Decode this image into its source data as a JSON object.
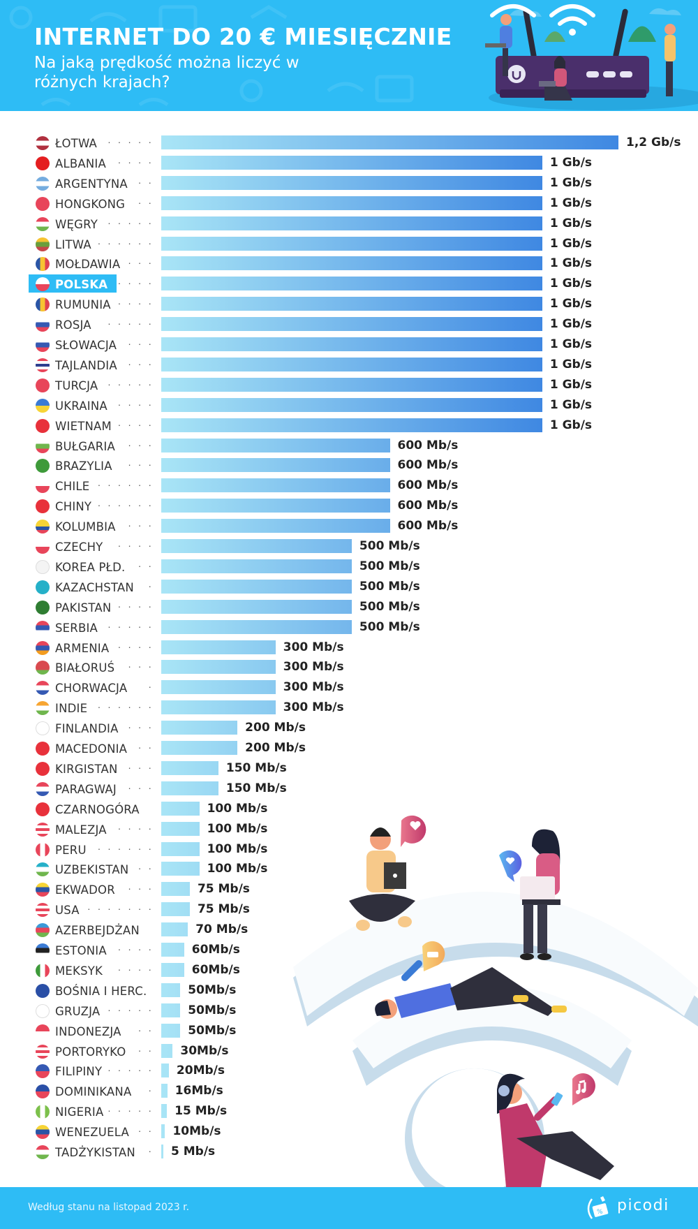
{
  "header": {
    "title": "INTERNET DO 20 € MIESIĘCZNIE",
    "subtitle": "Na jaką prędkość można liczyć w różnych krajach?"
  },
  "footer": {
    "source": "Według stanu na listopad 2023 r.",
    "brand": "picodi"
  },
  "colors": {
    "header_bg": "#2ebcf5",
    "bar_start": "#a9e5f6",
    "bar_end": "#3f88e2",
    "highlight": "#2ebcf5"
  },
  "chart_data": {
    "type": "bar",
    "orientation": "horizontal",
    "title": "INTERNET DO 20 € MIESIĘCZNIE",
    "subtitle": "Na jaką prędkość można liczyć w różnych krajach?",
    "unit": "Mb/s",
    "highlighted": "POLSKA",
    "xlim": [
      0,
      1200
    ],
    "grid": false,
    "rows": [
      {
        "country": "ŁOTWA",
        "dots": "· · · · ·",
        "value": 1200,
        "label": "1,2 Gb/s",
        "flag": [
          "#b0303f",
          "#ffffff",
          "#b0303f"
        ]
      },
      {
        "country": "ALBANIA",
        "dots": "· · · ·",
        "value": 1000,
        "label": "1 Gb/s",
        "flag": [
          "#e41e20"
        ]
      },
      {
        "country": "ARGENTYNA",
        "dots": "· ·",
        "value": 1000,
        "label": "1 Gb/s",
        "flag": [
          "#74acdf",
          "#ffffff",
          "#74acdf"
        ]
      },
      {
        "country": "HONGKONG",
        "dots": "· ·",
        "value": 1000,
        "label": "1 Gb/s",
        "flag": [
          "#e8455a"
        ]
      },
      {
        "country": "WĘGRY",
        "dots": "· · · · ·",
        "value": 1000,
        "label": "1 Gb/s",
        "flag": [
          "#e8455a",
          "#ffffff",
          "#6fb64d"
        ]
      },
      {
        "country": "LITWA",
        "dots": "· · · · · ·",
        "value": 1000,
        "label": "1 Gb/s",
        "flag": [
          "#f7c331",
          "#6a9e3c",
          "#c6464a"
        ]
      },
      {
        "country": "MOŁDAWIA",
        "dots": "· · ·",
        "value": 1000,
        "label": "1 Gb/s",
        "flag": [
          "#2a55a6",
          "#f7c331",
          "#e0424f"
        ],
        "vertical": true
      },
      {
        "country": "POLSKA",
        "dots": "· · · ·",
        "value": 1000,
        "label": "1 Gb/s",
        "flag": [
          "#ffffff",
          "#e8455a"
        ]
      },
      {
        "country": "RUMUNIA",
        "dots": "· · · ·",
        "value": 1000,
        "label": "1 Gb/s",
        "flag": [
          "#2a55a6",
          "#f7c331",
          "#e0424f"
        ],
        "vertical": true
      },
      {
        "country": "ROSJA",
        "dots": "· · · · ·",
        "value": 1000,
        "label": "1 Gb/s",
        "flag": [
          "#ffffff",
          "#3559b3",
          "#e8455a"
        ]
      },
      {
        "country": "SŁOWACJA",
        "dots": "· · ·",
        "value": 1000,
        "label": "1 Gb/s",
        "flag": [
          "#ffffff",
          "#3559b3",
          "#e8455a"
        ]
      },
      {
        "country": "TAJLANDIA",
        "dots": "· · ·",
        "value": 1000,
        "label": "1 Gb/s",
        "flag": [
          "#e8455a",
          "#ffffff",
          "#2e3f8f",
          "#ffffff",
          "#e8455a"
        ]
      },
      {
        "country": "TURCJA",
        "dots": "· · · · ·",
        "value": 1000,
        "label": "1 Gb/s",
        "flag": [
          "#e8455a"
        ]
      },
      {
        "country": "UKRAINA",
        "dots": "· · · ·",
        "value": 1000,
        "label": "1 Gb/s",
        "flag": [
          "#3a7bd5",
          "#f7d436"
        ]
      },
      {
        "country": "WIETNAM",
        "dots": "· · · ·",
        "value": 1000,
        "label": "1 Gb/s",
        "flag": [
          "#e8313b"
        ]
      },
      {
        "country": "BUŁGARIA",
        "dots": "· · ·",
        "value": 600,
        "label": "600 Mb/s",
        "flag": [
          "#ffffff",
          "#6fb64d",
          "#e8455a"
        ]
      },
      {
        "country": "BRAZYLIA",
        "dots": "· · ·",
        "value": 600,
        "label": "600 Mb/s",
        "flag": [
          "#3e9a3a"
        ]
      },
      {
        "country": "CHILE",
        "dots": "· · · · · ·",
        "value": 600,
        "label": "600 Mb/s",
        "flag": [
          "#ffffff",
          "#e8455a"
        ]
      },
      {
        "country": "CHINY",
        "dots": "· · · · · ·",
        "value": 600,
        "label": "600 Mb/s",
        "flag": [
          "#e8313b"
        ]
      },
      {
        "country": "KOLUMBIA",
        "dots": "· · ·",
        "value": 600,
        "label": "600 Mb/s",
        "flag": [
          "#f7d436",
          "#f7d436",
          "#2a55a6",
          "#e8455a"
        ]
      },
      {
        "country": "CZECHY",
        "dots": "· · · ·",
        "value": 500,
        "label": "500 Mb/s",
        "flag": [
          "#ffffff",
          "#e8455a"
        ]
      },
      {
        "country": "KOREA PŁD.",
        "dots": "· ·",
        "value": 500,
        "label": "500 Mb/s",
        "flag": [
          "#f4f4f4"
        ]
      },
      {
        "country": "KAZACHSTAN",
        "dots": "·",
        "value": 500,
        "label": "500 Mb/s",
        "flag": [
          "#25b0c8"
        ]
      },
      {
        "country": "PAKISTAN",
        "dots": "· · · ·",
        "value": 500,
        "label": "500 Mb/s",
        "flag": [
          "#2f7d32"
        ]
      },
      {
        "country": "SERBIA",
        "dots": "· · · · ·",
        "value": 500,
        "label": "500 Mb/s",
        "flag": [
          "#e8455a",
          "#3559b3",
          "#ffffff"
        ]
      },
      {
        "country": "ARMENIA",
        "dots": "· · · ·",
        "value": 300,
        "label": "300 Mb/s",
        "flag": [
          "#e8455a",
          "#3559b3",
          "#f39c1f"
        ]
      },
      {
        "country": "BIAŁORUŚ",
        "dots": "· · ·",
        "value": 300,
        "label": "300 Mb/s",
        "flag": [
          "#d94a4f",
          "#d94a4f",
          "#6fb64d"
        ]
      },
      {
        "country": "CHORWACJA",
        "dots": "·",
        "value": 300,
        "label": "300 Mb/s",
        "flag": [
          "#e8455a",
          "#ffffff",
          "#3559b3"
        ]
      },
      {
        "country": "INDIE",
        "dots": "· · · · · ·",
        "value": 300,
        "label": "300 Mb/s",
        "flag": [
          "#f7a531",
          "#ffffff",
          "#6fb64d"
        ]
      },
      {
        "country": "FINLANDIA",
        "dots": "· · ·",
        "value": 200,
        "label": "200 Mb/s",
        "flag": [
          "#ffffff"
        ]
      },
      {
        "country": "MACEDONIA",
        "dots": "· ·",
        "value": 200,
        "label": "200 Mb/s",
        "flag": [
          "#e8313b"
        ]
      },
      {
        "country": "KIRGISTAN",
        "dots": "· · ·",
        "value": 150,
        "label": "150 Mb/s",
        "flag": [
          "#e8313b"
        ]
      },
      {
        "country": "PARAGWAJ",
        "dots": "· · ·",
        "value": 150,
        "label": "150 Mb/s",
        "flag": [
          "#e8455a",
          "#ffffff",
          "#3559b3"
        ]
      },
      {
        "country": "CZARNOGÓRA",
        "dots": "",
        "value": 100,
        "label": "100 Mb/s",
        "flag": [
          "#e8313b"
        ]
      },
      {
        "country": "MALEZJA",
        "dots": "· · · ·",
        "value": 100,
        "label": "100 Mb/s",
        "flag": [
          "#e8455a",
          "#ffffff",
          "#e8455a",
          "#ffffff",
          "#e8455a"
        ]
      },
      {
        "country": "PERU",
        "dots": "· · · · · ·",
        "value": 100,
        "label": "100 Mb/s",
        "flag": [
          "#e8455a",
          "#ffffff",
          "#e8455a"
        ],
        "vertical": true
      },
      {
        "country": "UZBEKISTAN",
        "dots": "· ·",
        "value": 100,
        "label": "100 Mb/s",
        "flag": [
          "#25b0c8",
          "#ffffff",
          "#6fb64d"
        ]
      },
      {
        "country": "EKWADOR",
        "dots": "· · ·",
        "value": 75,
        "label": "75 Mb/s",
        "flag": [
          "#f7d436",
          "#2a55a6",
          "#e8455a"
        ]
      },
      {
        "country": "USA",
        "dots": "· · · · · · ·",
        "value": 75,
        "label": "75 Mb/s",
        "flag": [
          "#e8455a",
          "#ffffff",
          "#e8455a",
          "#ffffff",
          "#e8455a"
        ]
      },
      {
        "country": "AZERBEJDŻAN",
        "dots": "",
        "value": 70,
        "label": "70 Mb/s",
        "flag": [
          "#3a9ad9",
          "#e8455a",
          "#6fb64d"
        ]
      },
      {
        "country": "ESTONIA",
        "dots": "· · · ·",
        "value": 60,
        "label": "60Mb/s",
        "flag": [
          "#3a7bd5",
          "#222222",
          "#ffffff"
        ]
      },
      {
        "country": "MEKSYK",
        "dots": "· · · ·",
        "value": 60,
        "label": "60Mb/s",
        "flag": [
          "#3e9a3a",
          "#ffffff",
          "#e8455a"
        ],
        "vertical": true
      },
      {
        "country": "BOŚNIA I HERC.",
        "dots": "",
        "value": 50,
        "label": "50Mb/s",
        "flag": [
          "#2a4fa6"
        ]
      },
      {
        "country": "GRUZJA",
        "dots": "· · · · ·",
        "value": 50,
        "label": "50Mb/s",
        "flag": [
          "#ffffff"
        ]
      },
      {
        "country": "INDONEZJA",
        "dots": "· ·",
        "value": 50,
        "label": "50Mb/s",
        "flag": [
          "#e8455a",
          "#ffffff"
        ]
      },
      {
        "country": "PORTORYKO",
        "dots": "· ·",
        "value": 30,
        "label": "30Mb/s",
        "flag": [
          "#e8455a",
          "#ffffff",
          "#e8455a",
          "#ffffff",
          "#e8455a"
        ]
      },
      {
        "country": "FILIPINY",
        "dots": "· · · · ·",
        "value": 20,
        "label": "20Mb/s",
        "flag": [
          "#3559b3",
          "#e8455a"
        ]
      },
      {
        "country": "DOMINIKANA",
        "dots": "·",
        "value": 16,
        "label": "16Mb/s",
        "flag": [
          "#2a4fa6",
          "#e8455a"
        ]
      },
      {
        "country": "NIGERIA",
        "dots": "· · · · ·",
        "value": 15,
        "label": "15 Mb/s",
        "flag": [
          "#7cc04b",
          "#ffffff",
          "#7cc04b"
        ],
        "vertical": true
      },
      {
        "country": "WENEZUELA",
        "dots": "· ·",
        "value": 10,
        "label": "10Mb/s",
        "flag": [
          "#f7d436",
          "#2a55a6",
          "#e8455a"
        ]
      },
      {
        "country": "TADŻYKISTAN",
        "dots": "·",
        "value": 5,
        "label": "5 Mb/s",
        "flag": [
          "#e8455a",
          "#ffffff",
          "#6fb64d"
        ]
      }
    ]
  }
}
